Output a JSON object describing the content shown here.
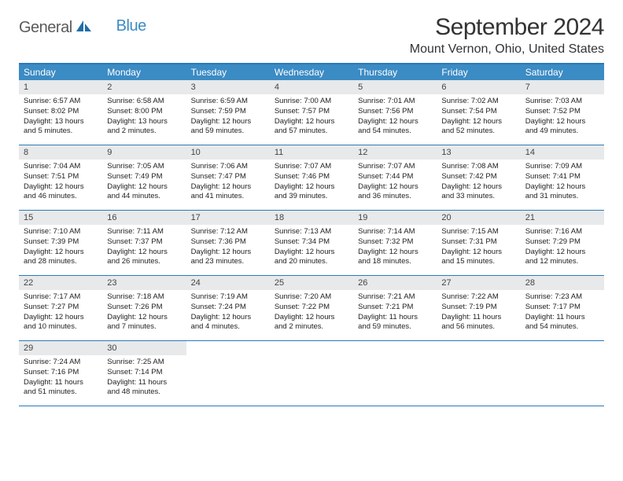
{
  "brand": {
    "part1": "General",
    "part2": "Blue"
  },
  "title": "September 2024",
  "location": "Mount Vernon, Ohio, United States",
  "colors": {
    "header_bg": "#3b8bc4",
    "header_border": "#2a7ab9",
    "daynum_bg": "#e8e9ea",
    "text": "#222222",
    "brand_gray": "#5a5a5a",
    "brand_blue": "#3b8bc4"
  },
  "typography": {
    "title_fontsize": 30,
    "location_fontsize": 16,
    "dayheader_fontsize": 12,
    "daynum_fontsize": 11,
    "body_fontsize": 9.5
  },
  "day_labels": [
    "Sunday",
    "Monday",
    "Tuesday",
    "Wednesday",
    "Thursday",
    "Friday",
    "Saturday"
  ],
  "weeks": [
    [
      {
        "num": "1",
        "sunrise": "Sunrise: 6:57 AM",
        "sunset": "Sunset: 8:02 PM",
        "daylight": "Daylight: 13 hours and 5 minutes."
      },
      {
        "num": "2",
        "sunrise": "Sunrise: 6:58 AM",
        "sunset": "Sunset: 8:00 PM",
        "daylight": "Daylight: 13 hours and 2 minutes."
      },
      {
        "num": "3",
        "sunrise": "Sunrise: 6:59 AM",
        "sunset": "Sunset: 7:59 PM",
        "daylight": "Daylight: 12 hours and 59 minutes."
      },
      {
        "num": "4",
        "sunrise": "Sunrise: 7:00 AM",
        "sunset": "Sunset: 7:57 PM",
        "daylight": "Daylight: 12 hours and 57 minutes."
      },
      {
        "num": "5",
        "sunrise": "Sunrise: 7:01 AM",
        "sunset": "Sunset: 7:56 PM",
        "daylight": "Daylight: 12 hours and 54 minutes."
      },
      {
        "num": "6",
        "sunrise": "Sunrise: 7:02 AM",
        "sunset": "Sunset: 7:54 PM",
        "daylight": "Daylight: 12 hours and 52 minutes."
      },
      {
        "num": "7",
        "sunrise": "Sunrise: 7:03 AM",
        "sunset": "Sunset: 7:52 PM",
        "daylight": "Daylight: 12 hours and 49 minutes."
      }
    ],
    [
      {
        "num": "8",
        "sunrise": "Sunrise: 7:04 AM",
        "sunset": "Sunset: 7:51 PM",
        "daylight": "Daylight: 12 hours and 46 minutes."
      },
      {
        "num": "9",
        "sunrise": "Sunrise: 7:05 AM",
        "sunset": "Sunset: 7:49 PM",
        "daylight": "Daylight: 12 hours and 44 minutes."
      },
      {
        "num": "10",
        "sunrise": "Sunrise: 7:06 AM",
        "sunset": "Sunset: 7:47 PM",
        "daylight": "Daylight: 12 hours and 41 minutes."
      },
      {
        "num": "11",
        "sunrise": "Sunrise: 7:07 AM",
        "sunset": "Sunset: 7:46 PM",
        "daylight": "Daylight: 12 hours and 39 minutes."
      },
      {
        "num": "12",
        "sunrise": "Sunrise: 7:07 AM",
        "sunset": "Sunset: 7:44 PM",
        "daylight": "Daylight: 12 hours and 36 minutes."
      },
      {
        "num": "13",
        "sunrise": "Sunrise: 7:08 AM",
        "sunset": "Sunset: 7:42 PM",
        "daylight": "Daylight: 12 hours and 33 minutes."
      },
      {
        "num": "14",
        "sunrise": "Sunrise: 7:09 AM",
        "sunset": "Sunset: 7:41 PM",
        "daylight": "Daylight: 12 hours and 31 minutes."
      }
    ],
    [
      {
        "num": "15",
        "sunrise": "Sunrise: 7:10 AM",
        "sunset": "Sunset: 7:39 PM",
        "daylight": "Daylight: 12 hours and 28 minutes."
      },
      {
        "num": "16",
        "sunrise": "Sunrise: 7:11 AM",
        "sunset": "Sunset: 7:37 PM",
        "daylight": "Daylight: 12 hours and 26 minutes."
      },
      {
        "num": "17",
        "sunrise": "Sunrise: 7:12 AM",
        "sunset": "Sunset: 7:36 PM",
        "daylight": "Daylight: 12 hours and 23 minutes."
      },
      {
        "num": "18",
        "sunrise": "Sunrise: 7:13 AM",
        "sunset": "Sunset: 7:34 PM",
        "daylight": "Daylight: 12 hours and 20 minutes."
      },
      {
        "num": "19",
        "sunrise": "Sunrise: 7:14 AM",
        "sunset": "Sunset: 7:32 PM",
        "daylight": "Daylight: 12 hours and 18 minutes."
      },
      {
        "num": "20",
        "sunrise": "Sunrise: 7:15 AM",
        "sunset": "Sunset: 7:31 PM",
        "daylight": "Daylight: 12 hours and 15 minutes."
      },
      {
        "num": "21",
        "sunrise": "Sunrise: 7:16 AM",
        "sunset": "Sunset: 7:29 PM",
        "daylight": "Daylight: 12 hours and 12 minutes."
      }
    ],
    [
      {
        "num": "22",
        "sunrise": "Sunrise: 7:17 AM",
        "sunset": "Sunset: 7:27 PM",
        "daylight": "Daylight: 12 hours and 10 minutes."
      },
      {
        "num": "23",
        "sunrise": "Sunrise: 7:18 AM",
        "sunset": "Sunset: 7:26 PM",
        "daylight": "Daylight: 12 hours and 7 minutes."
      },
      {
        "num": "24",
        "sunrise": "Sunrise: 7:19 AM",
        "sunset": "Sunset: 7:24 PM",
        "daylight": "Daylight: 12 hours and 4 minutes."
      },
      {
        "num": "25",
        "sunrise": "Sunrise: 7:20 AM",
        "sunset": "Sunset: 7:22 PM",
        "daylight": "Daylight: 12 hours and 2 minutes."
      },
      {
        "num": "26",
        "sunrise": "Sunrise: 7:21 AM",
        "sunset": "Sunset: 7:21 PM",
        "daylight": "Daylight: 11 hours and 59 minutes."
      },
      {
        "num": "27",
        "sunrise": "Sunrise: 7:22 AM",
        "sunset": "Sunset: 7:19 PM",
        "daylight": "Daylight: 11 hours and 56 minutes."
      },
      {
        "num": "28",
        "sunrise": "Sunrise: 7:23 AM",
        "sunset": "Sunset: 7:17 PM",
        "daylight": "Daylight: 11 hours and 54 minutes."
      }
    ],
    [
      {
        "num": "29",
        "sunrise": "Sunrise: 7:24 AM",
        "sunset": "Sunset: 7:16 PM",
        "daylight": "Daylight: 11 hours and 51 minutes."
      },
      {
        "num": "30",
        "sunrise": "Sunrise: 7:25 AM",
        "sunset": "Sunset: 7:14 PM",
        "daylight": "Daylight: 11 hours and 48 minutes."
      },
      {
        "empty": true
      },
      {
        "empty": true
      },
      {
        "empty": true
      },
      {
        "empty": true
      },
      {
        "empty": true
      }
    ]
  ]
}
